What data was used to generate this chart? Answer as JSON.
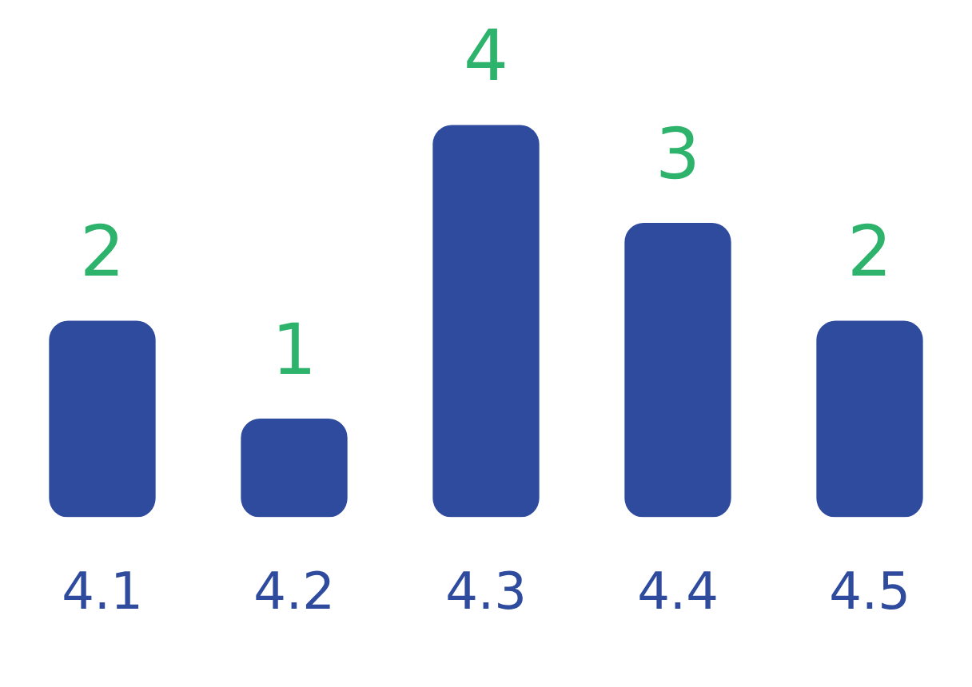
{
  "chart_data": {
    "type": "bar",
    "categories": [
      "4.1",
      "4.2",
      "4.3",
      "4.4",
      "4.5"
    ],
    "values": [
      2,
      1,
      4,
      3,
      2
    ],
    "color": "#2e4b9e",
    "data_labels": true,
    "grid": false,
    "legend": false,
    "tick_labels": "x"
  }
}
